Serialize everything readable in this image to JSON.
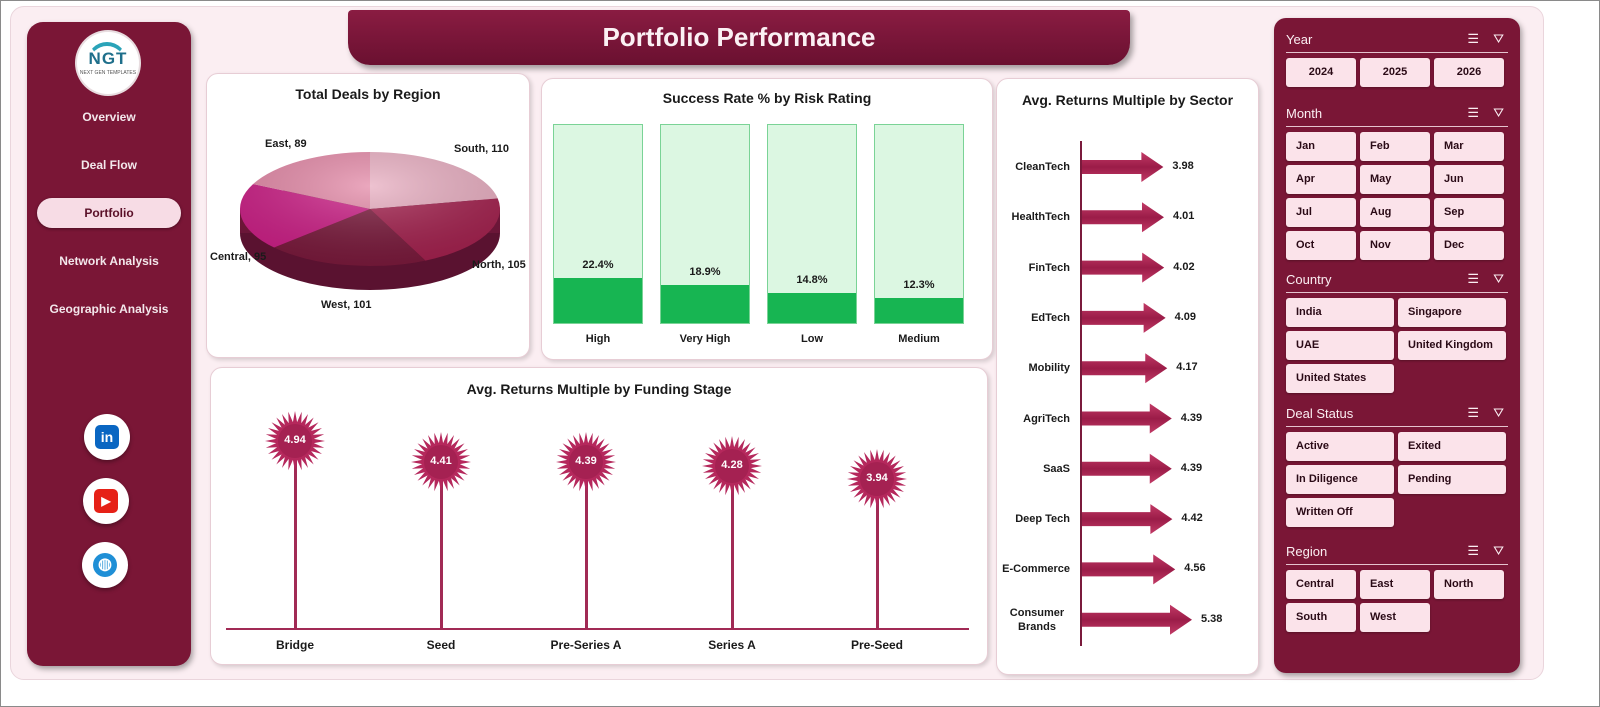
{
  "page": {
    "title": "Portfolio Performance"
  },
  "logo": {
    "text": "NGT",
    "subtext": "NEXT GEN TEMPLATES"
  },
  "nav": {
    "items": [
      {
        "label": "Overview",
        "active": false
      },
      {
        "label": "Deal Flow",
        "active": false
      },
      {
        "label": "Portfolio",
        "active": true
      },
      {
        "label": "Network Analysis",
        "active": false
      },
      {
        "label": "Geographic Analysis",
        "active": false
      }
    ],
    "social": [
      {
        "icon": "linkedin-icon",
        "glyph": "in",
        "color": "#0a66c2"
      },
      {
        "icon": "youtube-icon",
        "glyph": "▶",
        "color": "#e62117"
      },
      {
        "icon": "globe-icon",
        "glyph": "◍",
        "color": "#1f8fd6"
      }
    ]
  },
  "charts": {
    "region": {
      "title": "Total Deals by Region"
    },
    "risk": {
      "title": "Success Rate % by Risk Rating"
    },
    "stage": {
      "title": "Avg. Returns  Multiple by Funding Stage"
    },
    "sector": {
      "title": "Avg. Returns Multiple by Sector"
    }
  },
  "chart_data": [
    {
      "type": "pie",
      "title": "Total Deals by Region",
      "categories": [
        "South",
        "North",
        "West",
        "Central",
        "East"
      ],
      "values": [
        110,
        105,
        101,
        95,
        89
      ],
      "labels": [
        "South, 110",
        "North, 105",
        "West, 101",
        "Central, 95",
        "East, 89"
      ],
      "colors": [
        "#e8aec1",
        "#a3214e",
        "#7a1a3c",
        "#cc1f86",
        "#e48aa8"
      ]
    },
    {
      "type": "bar",
      "title": "Success Rate % by Risk Rating",
      "categories": [
        "High",
        "Very High",
        "Low",
        "Medium"
      ],
      "values": [
        22.4,
        18.9,
        14.8,
        12.3
      ],
      "value_labels": [
        "22.4%",
        "18.9%",
        "14.8%",
        "12.3%"
      ],
      "ylim": [
        0,
        100
      ]
    },
    {
      "type": "bar",
      "title": "Avg. Returns  Multiple by Funding Stage",
      "categories": [
        "Bridge",
        "Seed",
        "Pre-Series A",
        "Series A",
        "Pre-Seed"
      ],
      "values": [
        4.94,
        4.41,
        4.39,
        4.28,
        3.94
      ]
    },
    {
      "type": "bar",
      "title": "Avg. Returns Multiple by Sector",
      "orientation": "horizontal",
      "categories": [
        "CleanTech",
        "HealthTech",
        "FinTech",
        "EdTech",
        "Mobility",
        "AgriTech",
        "SaaS",
        "Deep Tech",
        "E-Commerce",
        "Consumer Brands"
      ],
      "values": [
        3.98,
        4.01,
        4.02,
        4.09,
        4.17,
        4.39,
        4.39,
        4.42,
        4.56,
        5.38
      ]
    }
  ],
  "slicers": [
    {
      "title": "Year",
      "options": [
        "2024",
        "2025",
        "2026"
      ]
    },
    {
      "title": "Month",
      "options": [
        "Jan",
        "Feb",
        "Mar",
        "Apr",
        "May",
        "Jun",
        "Jul",
        "Aug",
        "Sep",
        "Oct",
        "Nov",
        "Dec"
      ]
    },
    {
      "title": "Country",
      "options": [
        "India",
        "Singapore",
        "UAE",
        "United Kingdom",
        "United States"
      ]
    },
    {
      "title": "Deal Status",
      "options": [
        "Active",
        "Exited",
        "In Diligence",
        "Pending",
        "Written Off"
      ]
    },
    {
      "title": "Region",
      "options": [
        "Central",
        "East",
        "North",
        "South",
        "West"
      ]
    }
  ],
  "slicer_icons": {
    "multiselect": "multi-select-icon",
    "clear": "clear-filter-icon"
  }
}
